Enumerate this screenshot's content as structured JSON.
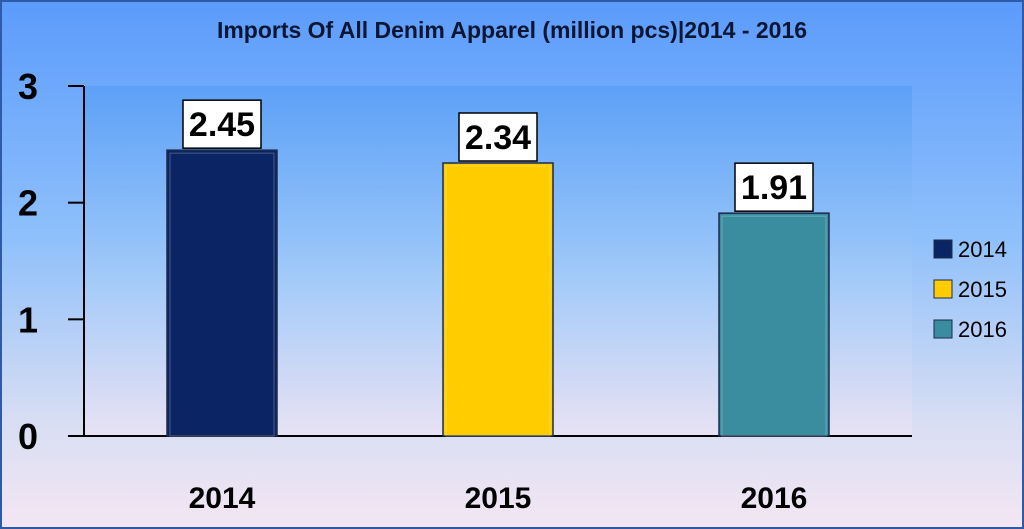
{
  "chart_data": {
    "type": "bar",
    "title": "Imports Of All Denim Apparel (million pcs)|2014 - 2016",
    "categories": [
      "2014",
      "2015",
      "2016"
    ],
    "values": [
      2.45,
      2.34,
      1.91
    ],
    "data_labels": [
      "2.45",
      "2.34",
      "1.91"
    ],
    "ylim": [
      0,
      3
    ],
    "yticks": [
      "0",
      "1",
      "2",
      "3"
    ],
    "colors": [
      "#0b2463",
      "#ffcc00",
      "#3a8d9e"
    ],
    "legend": {
      "position": "right",
      "entries": [
        "2014",
        "2015",
        "2016"
      ]
    },
    "grid": false
  }
}
